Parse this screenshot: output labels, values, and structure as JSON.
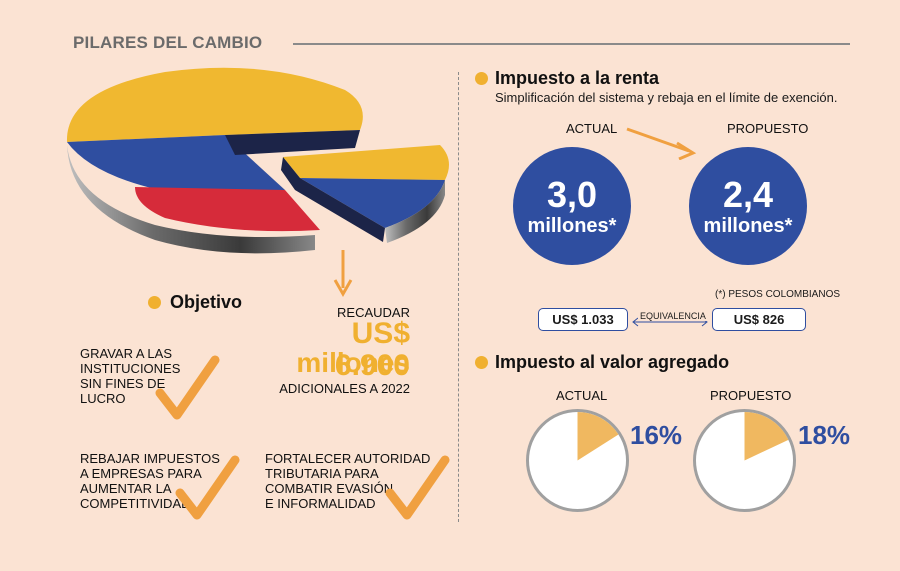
{
  "title": "PILARES DEL CAMBIO",
  "objetivo": {
    "heading": "Objetivo",
    "recaudar_label": "RECAUDAR",
    "amount": "US$ 6.900",
    "amount_unit": "millones",
    "amount_suffix": "ADICIONALES A 2022",
    "items": [
      {
        "line1": "GRAVAR A LAS",
        "line2": "INSTITUCIONES",
        "line3": "SIN FINES DE",
        "line4": "LUCRO"
      },
      {
        "line1": "REBAJAR IMPUESTOS",
        "line2": "A EMPRESAS PARA",
        "line3": "AUMENTAR LA",
        "line4": "COMPETITIVIDAD"
      },
      {
        "line1": "FORTALECER AUTORIDAD",
        "line2": "TRIBUTARIA PARA",
        "line3": "COMBATIR EVASIÓN",
        "line4": "E INFORMALIDAD"
      }
    ]
  },
  "renta": {
    "heading": "Impuesto a la renta",
    "subtitle": "Simplificación del sistema y rebaja en el límite de exención.",
    "actual_label": "ACTUAL",
    "propuesto_label": "PROPUESTO",
    "actual_value": "3,0",
    "actual_unit": "millones*",
    "propuesto_value": "2,4",
    "propuesto_unit": "millones*",
    "note": "(*) PESOS COLOMBIANOS",
    "usd_actual": "US$ 1.033",
    "usd_propuesto": "US$ 826",
    "equivalencia": "EQUIVALENCIA"
  },
  "iva": {
    "heading": "Impuesto al valor agregado",
    "actual_label": "ACTUAL",
    "propuesto_label": "PROPUESTO",
    "actual_pct_text": "16%",
    "propuesto_pct_text": "18%",
    "actual_pct": 16,
    "propuesto_pct": 18
  },
  "colors": {
    "accent": "#f0b030",
    "blue": "#2f4ea0",
    "red": "#d62b3a",
    "yellow": "#f0b830",
    "check": "#f0a040"
  }
}
